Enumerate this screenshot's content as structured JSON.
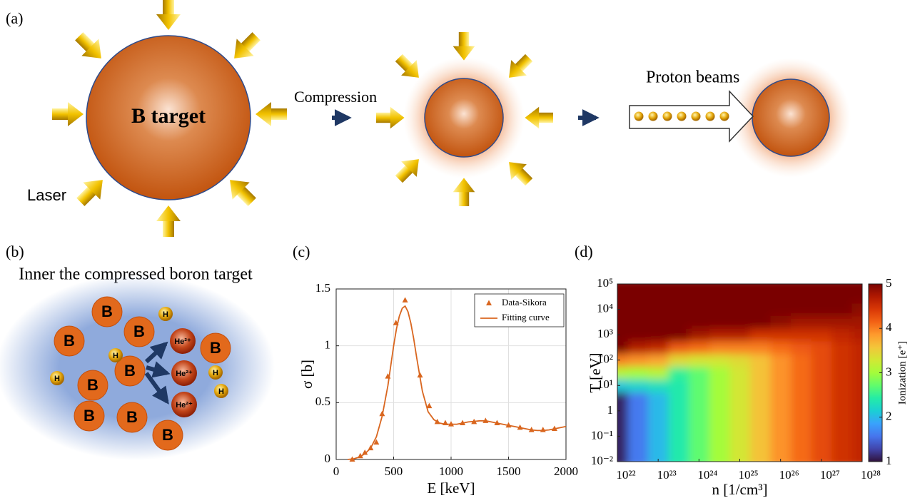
{
  "panels": {
    "a": {
      "label": "(a)",
      "target": "B target",
      "compression": "Compression",
      "proton_beams": "Proton beams",
      "laser": "Laser"
    },
    "b": {
      "label": "(b)",
      "title": "Inner the compressed boron target",
      "boron": [
        "B",
        "B",
        "B",
        "B",
        "B",
        "B",
        "B",
        "B",
        "B"
      ],
      "protons": [
        "H",
        "H",
        "H",
        "H",
        "H"
      ],
      "helium": [
        "He²⁺",
        "He²⁺",
        "He²⁺"
      ]
    }
  },
  "chart_data": [
    {
      "type": "line",
      "panel_label": "(c)",
      "xlabel": "E [keV]",
      "ylabel": "σ [b]",
      "xlim": [
        0,
        2000
      ],
      "ylim": [
        0,
        1.5
      ],
      "xticks": [
        0,
        500,
        1000,
        1500,
        2000
      ],
      "yticks": [
        0,
        0.5,
        1,
        1.5
      ],
      "grid": true,
      "legend": "upper right",
      "series": [
        {
          "name": "Data-Sikora",
          "color": "#d9661f",
          "marker": "triangle",
          "x": [
            140,
            210,
            250,
            300,
            350,
            400,
            450,
            520,
            600,
            730,
            810,
            880,
            950,
            1000,
            1100,
            1200,
            1300,
            1400,
            1500,
            1600,
            1700,
            1800,
            1900
          ],
          "values": [
            0.0,
            0.03,
            0.06,
            0.1,
            0.15,
            0.4,
            0.73,
            1.2,
            1.4,
            0.74,
            0.47,
            0.33,
            0.32,
            0.31,
            0.32,
            0.33,
            0.34,
            0.32,
            0.3,
            0.28,
            0.26,
            0.26,
            0.27
          ]
        },
        {
          "name": "Fitting curve",
          "color": "#d9661f",
          "marker": "none",
          "x": [
            100,
            150,
            200,
            250,
            300,
            350,
            400,
            450,
            500,
            525,
            550,
            575,
            600,
            625,
            650,
            675,
            700,
            750,
            800,
            850,
            900,
            950,
            1000,
            1050,
            1100,
            1150,
            1200,
            1250,
            1300,
            1350,
            1400,
            1450,
            1500,
            1550,
            1600,
            1650,
            1700,
            1750,
            1800,
            1850,
            1900,
            1950,
            2000
          ],
          "values": [
            0,
            0.005,
            0.02,
            0.05,
            0.1,
            0.2,
            0.38,
            0.65,
            1.0,
            1.15,
            1.26,
            1.33,
            1.35,
            1.3,
            1.2,
            1.06,
            0.9,
            0.6,
            0.42,
            0.35,
            0.32,
            0.31,
            0.31,
            0.31,
            0.32,
            0.33,
            0.335,
            0.34,
            0.34,
            0.33,
            0.32,
            0.31,
            0.3,
            0.29,
            0.28,
            0.27,
            0.26,
            0.255,
            0.255,
            0.26,
            0.27,
            0.28,
            0.29
          ]
        }
      ]
    },
    {
      "type": "heatmap",
      "panel_label": "(d)",
      "xlabel": "n [1/cm³]",
      "ylabel": "T [eV]",
      "log": true,
      "xlim": [
        1e+22,
        1e+28
      ],
      "ylim": [
        0.01,
        100000.0
      ],
      "xticks": [
        {
          "value": 1e+22,
          "label": "10²²"
        },
        {
          "value": 1e+23,
          "label": "10²³"
        },
        {
          "value": 1e+24,
          "label": "10²⁴"
        },
        {
          "value": 1e+25,
          "label": "10²⁵"
        },
        {
          "value": 1e+26,
          "label": "10²⁶"
        },
        {
          "value": 1e+27,
          "label": "10²⁷"
        },
        {
          "value": 1e+28,
          "label": "10²⁸"
        }
      ],
      "yticks": [
        {
          "value": 0.01,
          "label": "10⁻²"
        },
        {
          "value": 0.1,
          "label": "10⁻¹"
        },
        1,
        {
          "value": 10,
          "label": "10¹"
        },
        {
          "value": 100,
          "label": "10²"
        },
        {
          "value": 1000,
          "label": "10³"
        },
        {
          "value": 10000,
          "label": "10⁴"
        },
        {
          "value": 100000,
          "label": "10⁵"
        }
      ],
      "colormap": "turbo",
      "clim": [
        1,
        5
      ],
      "cticks": [
        1,
        2,
        3,
        4,
        5
      ],
      "colorbar_label": "Ionization [e⁺]",
      "x": [
        1e+22,
        3.16e+22,
        1e+23,
        3.16e+23,
        1e+24,
        3.16e+24,
        1e+25,
        3.16e+25,
        1e+26,
        3.16e+26,
        1e+27,
        3.16e+27,
        1e+28
      ],
      "y": [
        0.01,
        0.0316,
        0.1,
        0.316,
        1,
        3.16,
        10,
        31.6,
        100,
        316,
        1000,
        3160,
        10000,
        31600,
        100000
      ],
      "z": [
        [
          1.1,
          1.6,
          2.0,
          2.4,
          2.7,
          3.0,
          3.3,
          3.6,
          3.9,
          4.1,
          4.3,
          4.5,
          4.6
        ],
        [
          1.1,
          1.6,
          2.0,
          2.4,
          2.7,
          3.0,
          3.3,
          3.6,
          3.9,
          4.1,
          4.3,
          4.5,
          4.6
        ],
        [
          1.1,
          1.6,
          2.0,
          2.4,
          2.7,
          3.0,
          3.3,
          3.6,
          3.9,
          4.1,
          4.3,
          4.5,
          4.6
        ],
        [
          1.1,
          1.6,
          2.0,
          2.4,
          2.7,
          3.0,
          3.3,
          3.6,
          3.9,
          4.1,
          4.3,
          4.5,
          4.6
        ],
        [
          1.1,
          1.6,
          2.0,
          2.4,
          2.7,
          3.0,
          3.3,
          3.6,
          3.9,
          4.1,
          4.3,
          4.5,
          4.6
        ],
        [
          1.1,
          1.6,
          2.0,
          2.4,
          2.7,
          3.0,
          3.3,
          3.6,
          3.9,
          4.1,
          4.3,
          4.5,
          4.6
        ],
        [
          2.1,
          2.2,
          2.3,
          2.4,
          2.7,
          3.0,
          3.3,
          3.6,
          3.9,
          4.1,
          4.3,
          4.5,
          4.6
        ],
        [
          3.1,
          3.0,
          3.1,
          2.5,
          2.7,
          3.0,
          3.3,
          3.6,
          3.9,
          4.1,
          4.3,
          4.5,
          4.6
        ],
        [
          4.0,
          3.9,
          3.8,
          3.4,
          3.3,
          3.3,
          3.4,
          3.6,
          3.9,
          4.1,
          4.3,
          4.5,
          4.6
        ],
        [
          5,
          4.7,
          4.6,
          4.2,
          4.1,
          4.0,
          4.0,
          4.0,
          4.1,
          4.2,
          4.3,
          4.5,
          4.6
        ],
        [
          5,
          5,
          5,
          5,
          4.8,
          4.7,
          4.7,
          4.5,
          4.5,
          4.5,
          4.5,
          4.6,
          4.7
        ],
        [
          5,
          5,
          5,
          5,
          5,
          5,
          5,
          5.0,
          4.9,
          4.8,
          4.8,
          4.8,
          4.8
        ],
        [
          5,
          5,
          5,
          5,
          5,
          5,
          5,
          5,
          5,
          5,
          5,
          5.0,
          4.9
        ],
        [
          5,
          5,
          5,
          5,
          5,
          5,
          5,
          5,
          5,
          5,
          5,
          5,
          5
        ],
        [
          5,
          5,
          5,
          5,
          5,
          5,
          5,
          5,
          5,
          5,
          5,
          5,
          5
        ]
      ]
    }
  ]
}
